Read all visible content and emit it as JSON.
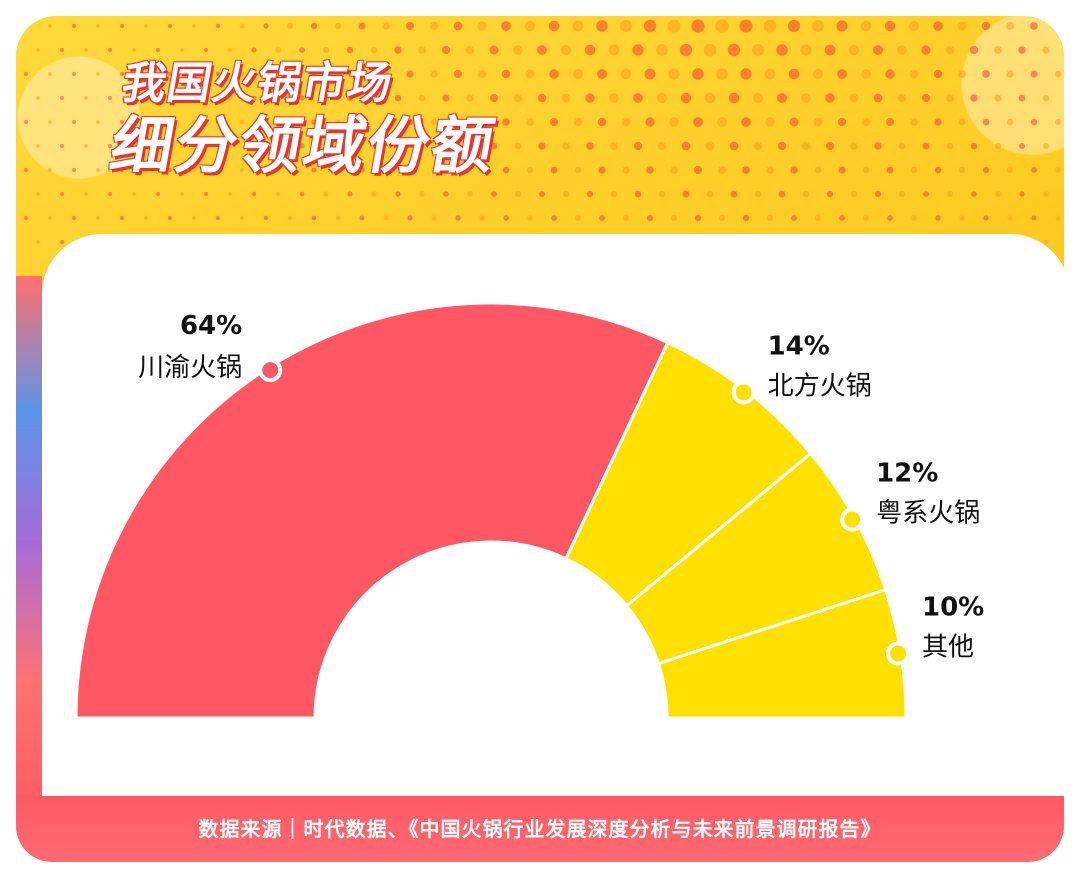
{
  "title": {
    "line1": "我国火锅市场",
    "line2": "细分领域份额"
  },
  "footer": {
    "source": "数据来源｜时代数据、《中国火锅行业发展深度分析与未来前景调研报告》"
  },
  "colors": {
    "accent_red": "#ff5763",
    "accent_yellow": "#ffe000",
    "background_yellow": "#ffc81e"
  },
  "chart_data": {
    "type": "pie",
    "variant": "semi-donut",
    "categories": [
      "川渝火锅",
      "北方火锅",
      "粤系火锅",
      "其他"
    ],
    "values": [
      64,
      14,
      12,
      10
    ],
    "labels": [
      "64%",
      "14%",
      "12%",
      "10%"
    ],
    "colors": [
      "#ff5763",
      "#ffe000",
      "#ffe000",
      "#ffe000"
    ]
  }
}
